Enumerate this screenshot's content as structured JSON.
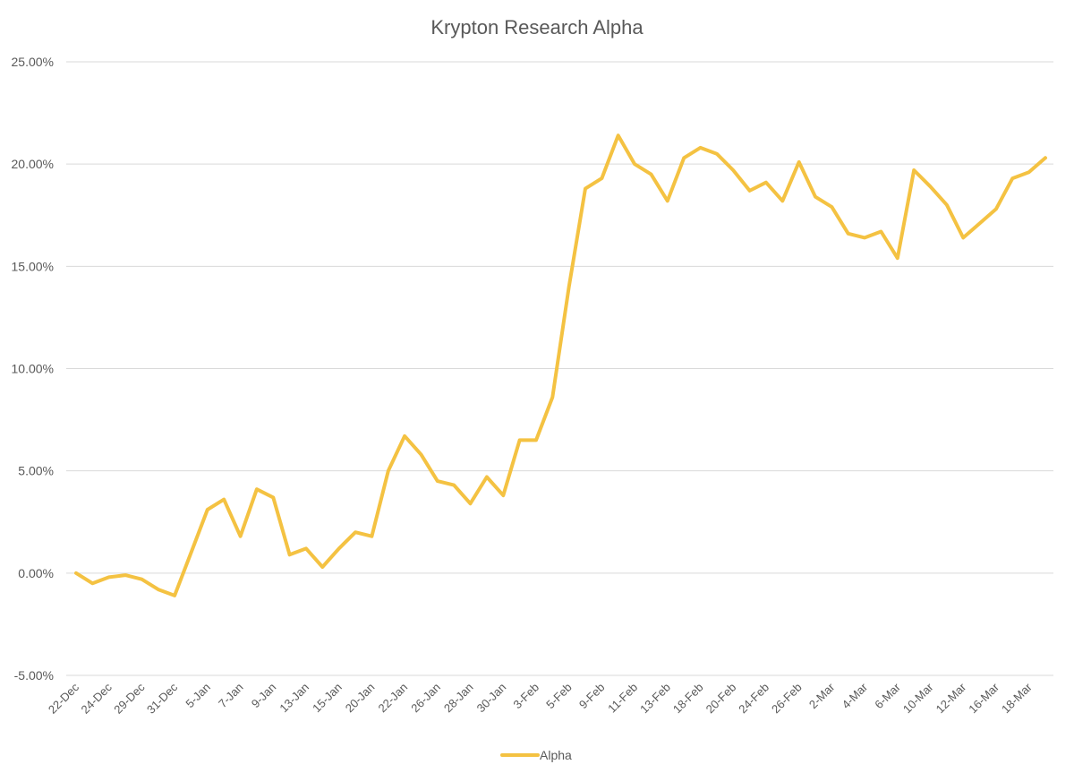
{
  "chart_data": {
    "type": "line",
    "title": "Krypton Research Alpha",
    "xlabel": "",
    "ylabel": "",
    "ylim": [
      -0.05,
      0.25
    ],
    "y_ticks": [
      {
        "value": 0.25,
        "label": "25.00%"
      },
      {
        "value": 0.2,
        "label": "20.00%"
      },
      {
        "value": 0.15,
        "label": "15.00%"
      },
      {
        "value": 0.1,
        "label": "10.00%"
      },
      {
        "value": 0.05,
        "label": "5.00%"
      },
      {
        "value": 0.0,
        "label": "0.00%"
      },
      {
        "value": -0.05,
        "label": "-5.00%"
      }
    ],
    "x_tick_labels": [
      "22-Dec",
      "24-Dec",
      "29-Dec",
      "31-Dec",
      "5-Jan",
      "7-Jan",
      "9-Jan",
      "13-Jan",
      "15-Jan",
      "20-Jan",
      "22-Jan",
      "26-Jan",
      "28-Jan",
      "30-Jan",
      "3-Feb",
      "5-Feb",
      "9-Feb",
      "11-Feb",
      "13-Feb",
      "18-Feb",
      "20-Feb",
      "24-Feb",
      "26-Feb",
      "2-Mar",
      "4-Mar",
      "6-Mar",
      "10-Mar",
      "12-Mar",
      "16-Mar",
      "18-Mar"
    ],
    "grid": true,
    "legend_position": "bottom",
    "series": [
      {
        "name": "Alpha",
        "color": "#f4c242",
        "values": [
          0.0,
          -0.005,
          -0.002,
          -0.001,
          -0.003,
          -0.008,
          -0.011,
          0.01,
          0.031,
          0.036,
          0.018,
          0.041,
          0.037,
          0.009,
          0.012,
          0.003,
          0.012,
          0.02,
          0.018,
          0.05,
          0.067,
          0.058,
          0.045,
          0.043,
          0.034,
          0.047,
          0.038,
          0.065,
          0.065,
          0.086,
          0.14,
          0.188,
          0.193,
          0.214,
          0.2,
          0.195,
          0.182,
          0.203,
          0.208,
          0.205,
          0.197,
          0.187,
          0.191,
          0.182,
          0.201,
          0.184,
          0.179,
          0.166,
          0.164,
          0.167,
          0.154,
          0.197,
          0.189,
          0.18,
          0.164,
          0.171,
          0.178,
          0.193,
          0.196,
          0.203
        ]
      }
    ]
  }
}
